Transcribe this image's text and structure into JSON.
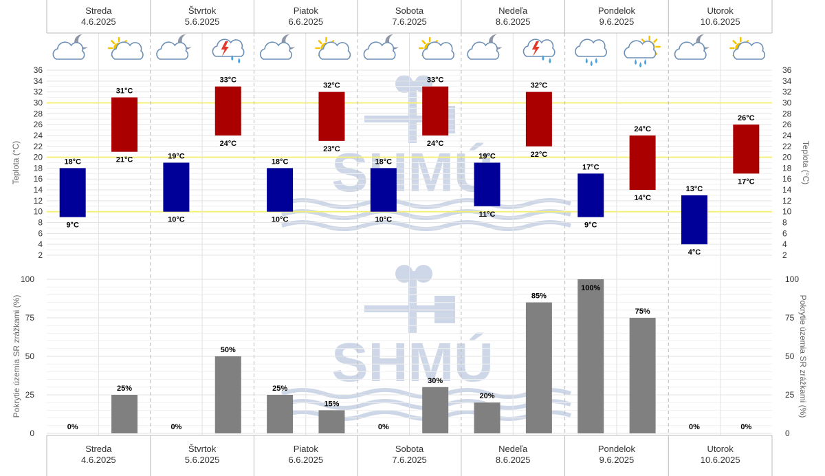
{
  "days": [
    {
      "name": "Streda",
      "date": "4.6.2025",
      "night_icon": "moon-cloud-icon",
      "day_icon": "sun-cloud-icon"
    },
    {
      "name": "Štvrtok",
      "date": "5.6.2025",
      "night_icon": "moon-cloud-icon",
      "day_icon": "thunderstorm-icon"
    },
    {
      "name": "Piatok",
      "date": "6.6.2025",
      "night_icon": "moon-cloud-icon",
      "day_icon": "sun-cloud-icon"
    },
    {
      "name": "Sobota",
      "date": "7.6.2025",
      "night_icon": "moon-cloud-icon",
      "day_icon": "sun-cloud-icon"
    },
    {
      "name": "Nedeľa",
      "date": "8.6.2025",
      "night_icon": "moon-cloud-icon",
      "day_icon": "thunderstorm-icon"
    },
    {
      "name": "Pondelok",
      "date": "9.6.2025",
      "night_icon": "rain-cloud-icon",
      "day_icon": "sun-rain-cloud-icon"
    },
    {
      "name": "Utorok",
      "date": "10.6.2025",
      "night_icon": "moon-cloud-icon",
      "day_icon": "sun-cloud-icon"
    }
  ],
  "watermark": "SHMÚ",
  "colors": {
    "night": "#000099",
    "day": "#aa0000",
    "precip": "#808080",
    "threshold": "#f5f07a",
    "grid": "#e3e3e3",
    "daysep": "#bbbbbb"
  },
  "chart_data": [
    {
      "type": "bar",
      "title": "",
      "ylabel": "Teplota (°C)",
      "ylabel_right": "Teplota (°C)",
      "ylim": [
        2,
        36
      ],
      "yticks": [
        2,
        4,
        6,
        8,
        10,
        12,
        14,
        16,
        18,
        20,
        22,
        24,
        26,
        28,
        30,
        32,
        34,
        36
      ],
      "unit": "°C",
      "threshold_lines": [
        10,
        20,
        30
      ],
      "categories": [
        "Streda 4.6.2025",
        "Štvrtok 5.6.2025",
        "Piatok 6.6.2025",
        "Sobota 7.6.2025",
        "Nedeľa 8.6.2025",
        "Pondelok 9.6.2025",
        "Utorok 10.6.2025"
      ],
      "series": [
        {
          "name": "noc",
          "min": [
            9,
            10,
            10,
            10,
            11,
            9,
            4
          ],
          "max": [
            18,
            19,
            18,
            18,
            19,
            17,
            13
          ]
        },
        {
          "name": "deň",
          "min": [
            21,
            24,
            23,
            24,
            22,
            14,
            17
          ],
          "max": [
            31,
            33,
            32,
            33,
            32,
            24,
            26
          ]
        }
      ]
    },
    {
      "type": "bar",
      "title": "",
      "ylabel": "Pokrytie územia SR zrážkami (%)",
      "ylabel_right": "Pokrytie územia SR zrážkami (%)",
      "ylim": [
        0,
        100
      ],
      "yticks": [
        0,
        25,
        50,
        75,
        100
      ],
      "unit": "%",
      "categories": [
        "Streda 4.6.2025",
        "Štvrtok 5.6.2025",
        "Piatok 6.6.2025",
        "Sobota 7.6.2025",
        "Nedeľa 8.6.2025",
        "Pondelok 9.6.2025",
        "Utorok 10.6.2025"
      ],
      "series": [
        {
          "name": "noc",
          "values": [
            0,
            0,
            25,
            0,
            20,
            100,
            0
          ]
        },
        {
          "name": "deň",
          "values": [
            25,
            50,
            15,
            30,
            85,
            75,
            0
          ]
        }
      ]
    }
  ]
}
